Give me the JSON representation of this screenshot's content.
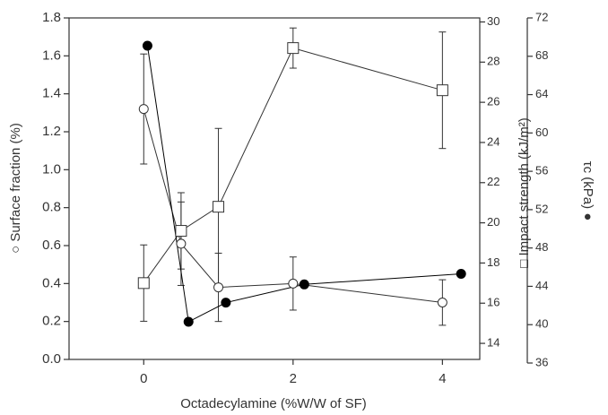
{
  "chart_data": {
    "type": "line",
    "x_label": "Octadecylamine (%W/W of SF)",
    "y_label": "○ Surface fraction (%)",
    "y2_label": "□ Impact strength (kJ/m²)",
    "y3_label": "τc (kPa) ●",
    "xlim": [
      -1,
      4.5
    ],
    "xticks": [
      0,
      2,
      4
    ],
    "ylim": [
      0,
      1.8
    ],
    "yticks": [
      {
        "value": 0,
        "label": "0.0"
      },
      {
        "value": 0.2,
        "label": "0.2"
      },
      {
        "value": 0.4,
        "label": "0.4"
      },
      {
        "value": 0.6,
        "label": "0.6"
      },
      {
        "value": 0.8,
        "label": "0.8"
      },
      {
        "value": 1.0,
        "label": "1.0"
      },
      {
        "value": 1.2,
        "label": "1.2"
      },
      {
        "value": 1.4,
        "label": "1.4"
      },
      {
        "value": 1.6,
        "label": "1.6"
      },
      {
        "value": 1.8,
        "label": "1.8"
      }
    ],
    "y2lim": [
      13.2,
      30.2
    ],
    "y2ticks": [
      14,
      16,
      18,
      20,
      22,
      24,
      26,
      28,
      30
    ],
    "y3lim": [
      36,
      72
    ],
    "y3ticks": [
      36,
      40,
      44,
      48,
      52,
      56,
      60,
      64,
      68,
      72
    ],
    "series": [
      {
        "name": "Surface fraction",
        "axis": "y",
        "marker": "open-circle",
        "color": "#333333",
        "x": [
          0,
          0.5,
          1,
          2,
          4
        ],
        "values": [
          1.32,
          0.61,
          0.38,
          0.4,
          0.3
        ],
        "errors": [
          0.29,
          0.22,
          0.18,
          0.14,
          0.12
        ]
      },
      {
        "name": "Impact strength",
        "axis": "y2",
        "marker": "open-square",
        "color": "#333333",
        "x": [
          0,
          0.5,
          1,
          2,
          4
        ],
        "values": [
          17.0,
          19.6,
          20.8,
          28.7,
          26.6
        ],
        "errors": [
          1.9,
          1.9,
          3.9,
          1.0,
          2.9
        ]
      },
      {
        "name": "τc",
        "axis": "y3",
        "marker": "filled-circle",
        "color": "#000000",
        "x": [
          0.05,
          0.6,
          1.1,
          2.15,
          4.25
        ],
        "values": [
          69.1,
          40.3,
          42.3,
          44.2,
          45.3
        ]
      }
    ]
  }
}
